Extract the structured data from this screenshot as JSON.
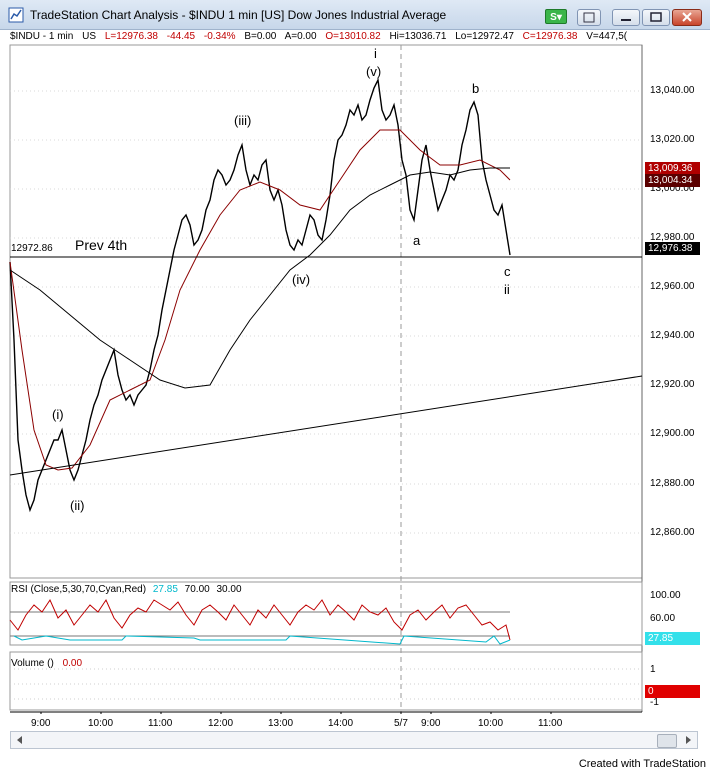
{
  "window": {
    "title": "TradeStation Chart Analysis - $INDU  1 min  [US] Dow Jones Industrial Average",
    "s_button": "S"
  },
  "statusline": {
    "symbol": "$INDU - 1 min",
    "market": "US",
    "last": "L=12976.38",
    "net": "-44.45",
    "pct": "-0.34%",
    "bid": "B=0.00",
    "ask": "A=0.00",
    "open": "O=13010.82",
    "high": "Hi=13036.71",
    "low": "Lo=12972.47",
    "close": "C=12976.38",
    "volume": "V=447,5("
  },
  "price_axis": {
    "labels": [
      "13,040.00",
      "13,020.00",
      "13,000.00",
      "12,980.00",
      "12,960.00",
      "12,940.00",
      "12,920.00",
      "12,900.00",
      "12,880.00",
      "12,860.00"
    ],
    "box_red": "13,009.36",
    "box_dark": "13,004.34",
    "box_last": "12,976.38"
  },
  "annotations": {
    "prev4th_value": "12972.86",
    "prev4th_label": "Prev 4th",
    "w_i": "(i)",
    "w_ii": "(ii)",
    "w_iii": "(iii)",
    "w_iv": "(iv)",
    "w_v": "(v)",
    "top_i": "i",
    "w_a": "a",
    "w_b": "b",
    "w_c": "c",
    "w_ii_small": "ii"
  },
  "rsi": {
    "label": "RSI (Close,5,30,70,Cyan,Red)",
    "value": "27.85",
    "upper": "70.00",
    "lower": "30.00",
    "axis": [
      "100.00",
      "60.00"
    ],
    "box": "27.85",
    "colors": {
      "up": "#c00000",
      "down": "#00c8d8"
    }
  },
  "volume": {
    "label": "Volume ()",
    "value": "0.00",
    "axis": [
      "1",
      "-1"
    ],
    "box": "0"
  },
  "time_axis": [
    "9:00",
    "10:00",
    "11:00",
    "12:00",
    "13:00",
    "14:00",
    "5/7",
    "9:00",
    "10:00",
    "11:00"
  ],
  "footer": {
    "credit": "Created with TradeStation"
  }
}
